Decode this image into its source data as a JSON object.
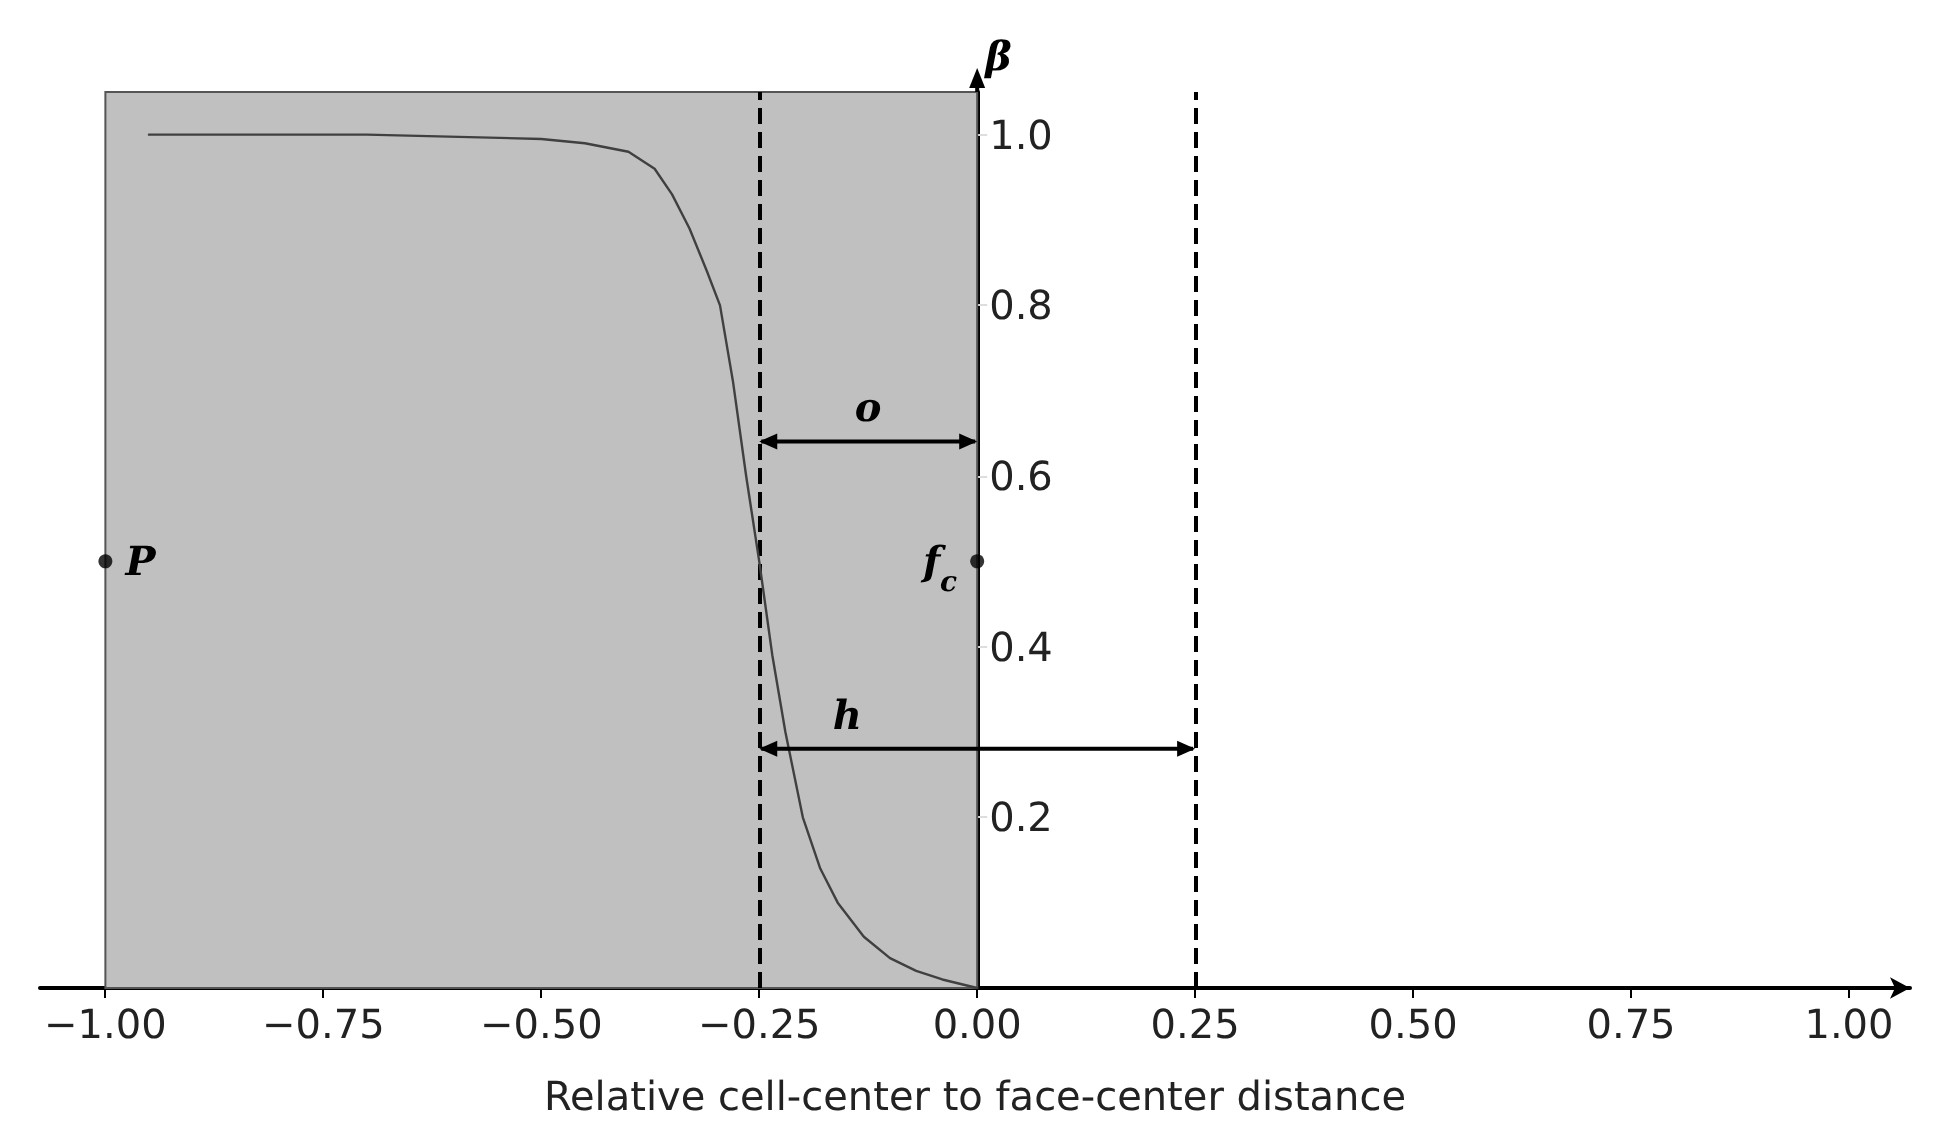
{
  "chart_data": {
    "type": "line",
    "xlabel": "Relative cell-center to face-center distance",
    "ylabel": "β",
    "xlim": [
      -1.075,
      1.07
    ],
    "ylim": [
      0,
      1.05
    ],
    "xticks": [
      {
        "value": -1.0,
        "label": "−1.00"
      },
      {
        "value": -0.75,
        "label": "−0.75"
      },
      {
        "value": -0.5,
        "label": "−0.50"
      },
      {
        "value": -0.25,
        "label": "−0.25"
      },
      {
        "value": 0.0,
        "label": "0.00"
      },
      {
        "value": 0.25,
        "label": "0.25"
      },
      {
        "value": 0.5,
        "label": "0.50"
      },
      {
        "value": 0.75,
        "label": "0.75"
      },
      {
        "value": 1.0,
        "label": "1.00"
      }
    ],
    "yticks": [
      0.2,
      0.4,
      0.6,
      0.8,
      {
        "value": 1.0,
        "label": "1.0"
      }
    ],
    "grid": false,
    "marker": "none",
    "line_style": "solid",
    "series": [
      {
        "color": "#404040",
        "x": [
          -0.95,
          -0.7,
          -0.5,
          -0.45,
          -0.4,
          -0.37,
          -0.35,
          -0.33,
          -0.31,
          -0.295,
          -0.28,
          -0.265,
          -0.25,
          -0.235,
          -0.22,
          -0.2,
          -0.18,
          -0.16,
          -0.13,
          -0.1,
          -0.07,
          -0.04,
          -0.02,
          0.0
        ],
        "values": [
          1.0,
          1.0,
          0.995,
          0.99,
          0.98,
          0.96,
          0.93,
          0.89,
          0.84,
          0.8,
          0.71,
          0.6,
          0.5,
          0.39,
          0.3,
          0.2,
          0.14,
          0.1,
          0.06,
          0.035,
          0.02,
          0.01,
          0.005,
          0.0
        ]
      },
      {
        "type": "scatter",
        "color": "#000000",
        "marker": "circle",
        "x": [
          -1.0,
          0.0
        ],
        "values": [
          0.5,
          0.5
        ]
      }
    ],
    "bands": [
      {
        "axis": "x",
        "from": -1.0,
        "to": 0.0,
        "color": "#c0c0c0"
      }
    ],
    "ref_lines": [
      {
        "axis": "x",
        "value": -0.25,
        "line_style": "dashed",
        "color": "#000000"
      },
      {
        "axis": "x",
        "value": 0.25,
        "line_style": "dashed",
        "color": "#000000"
      }
    ],
    "annotations": [
      {
        "text": "P",
        "x": -1.0,
        "y": 0.5
      },
      {
        "text": "f$_{c}$",
        "x": 0.0,
        "y": 0.5
      },
      "o",
      "h"
    ]
  }
}
